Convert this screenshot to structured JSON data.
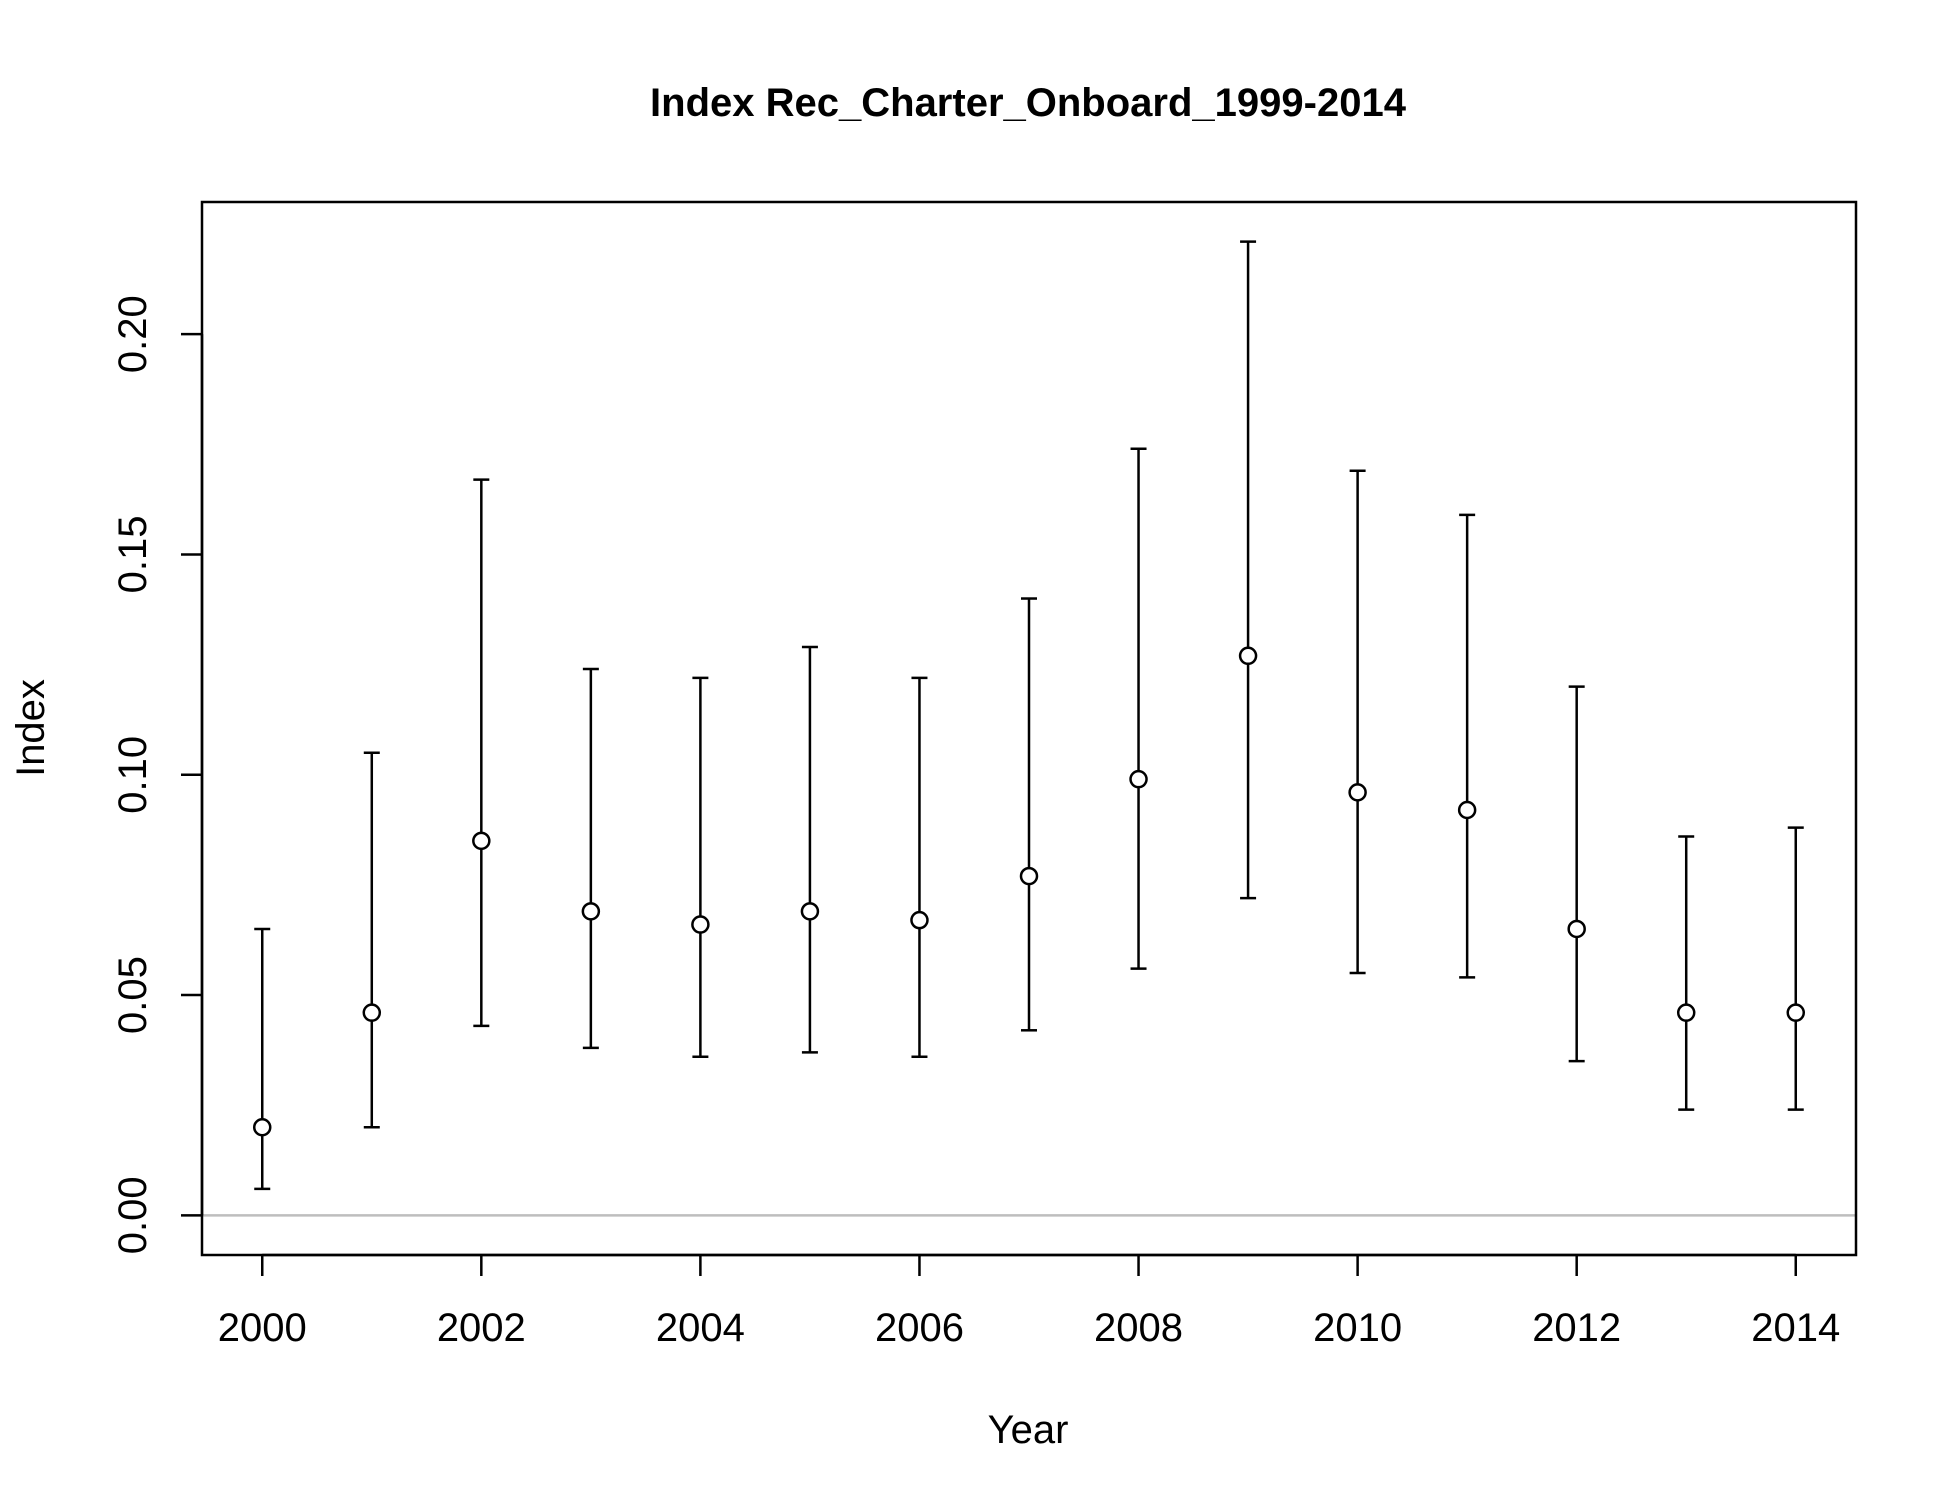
{
  "chart_data": {
    "type": "scatter",
    "title": "Index Rec_Charter_Onboard_1999-2014",
    "xlabel": "Year",
    "ylabel": "Index",
    "xlim": [
      1999.45,
      2014.55
    ],
    "ylim": [
      -0.009,
      0.23
    ],
    "x_ticks": [
      "2000",
      "2002",
      "2004",
      "2006",
      "2008",
      "2010",
      "2012",
      "2014"
    ],
    "y_ticks": [
      "0.00",
      "0.05",
      "0.10",
      "0.15",
      "0.20"
    ],
    "reference_line": 0,
    "grid": false,
    "legend": "none",
    "colors": {
      "points": "#000000",
      "bars": "#000000",
      "reference_line": "#bebebe",
      "axes": "#000000"
    },
    "series": [
      {
        "x": [
          2000,
          2001,
          2002,
          2003,
          2004,
          2005,
          2006,
          2007,
          2008,
          2009,
          2010,
          2011,
          2012,
          2013,
          2014
        ],
        "values": [
          0.02,
          0.046,
          0.085,
          0.069,
          0.066,
          0.069,
          0.067,
          0.077,
          0.099,
          0.127,
          0.096,
          0.092,
          0.065,
          0.046,
          0.046
        ],
        "lower": [
          0.006,
          0.02,
          0.043,
          0.038,
          0.036,
          0.037,
          0.036,
          0.042,
          0.056,
          0.072,
          0.055,
          0.054,
          0.035,
          0.024,
          0.024
        ],
        "upper": [
          0.065,
          0.105,
          0.167,
          0.124,
          0.122,
          0.129,
          0.122,
          0.14,
          0.174,
          0.221,
          0.169,
          0.159,
          0.12,
          0.086,
          0.088
        ]
      }
    ]
  }
}
